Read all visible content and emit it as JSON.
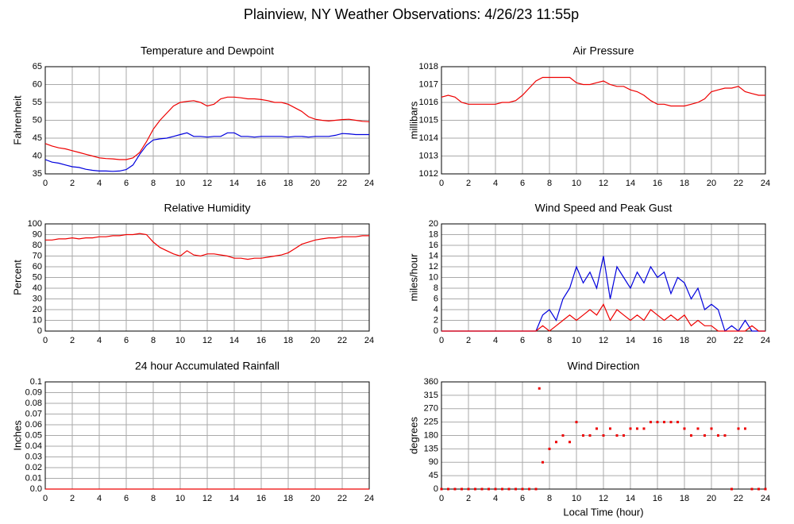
{
  "title": "Plainview, NY Weather Observations: 4/26/23 11:55p",
  "chart_data": [
    {
      "type": "line",
      "title": "Temperature and Dewpoint",
      "ylabel": "Fahrenheit",
      "x": [
        0,
        0.5,
        1,
        1.5,
        2,
        2.5,
        3,
        3.5,
        4,
        4.5,
        5,
        5.5,
        6,
        6.5,
        7,
        7.5,
        8,
        8.5,
        9,
        9.5,
        10,
        10.5,
        11,
        11.5,
        12,
        12.5,
        13,
        13.5,
        14,
        14.5,
        15,
        15.5,
        16,
        16.5,
        17,
        17.5,
        18,
        18.5,
        19,
        19.5,
        20,
        20.5,
        21,
        21.5,
        22,
        22.5,
        23,
        23.5,
        24
      ],
      "series": [
        {
          "color": "#ee0000",
          "values": [
            43.5,
            42.8,
            42.3,
            42,
            41.5,
            41,
            40.5,
            40,
            39.5,
            39.3,
            39.2,
            39,
            39,
            39.5,
            41,
            44,
            47.5,
            50,
            52,
            54,
            55,
            55.3,
            55.5,
            55,
            54,
            54.5,
            56,
            56.5,
            56.5,
            56.3,
            56,
            56,
            55.8,
            55.5,
            55,
            55,
            54.5,
            53.5,
            52.5,
            51,
            50.3,
            50,
            49.8,
            50,
            50.2,
            50.3,
            50,
            49.7,
            49.6
          ]
        },
        {
          "color": "#0000dd",
          "values": [
            39,
            38.3,
            38,
            37.5,
            37,
            36.8,
            36.3,
            36,
            35.8,
            35.8,
            35.7,
            35.8,
            36.2,
            37.5,
            40.5,
            43,
            44.5,
            44.8,
            45,
            45.5,
            46,
            46.5,
            45.5,
            45.5,
            45.3,
            45.5,
            45.5,
            46.5,
            46.5,
            45.5,
            45.5,
            45.3,
            45.5,
            45.5,
            45.5,
            45.5,
            45.3,
            45.5,
            45.5,
            45.3,
            45.5,
            45.5,
            45.5,
            45.8,
            46.3,
            46.2,
            46,
            46,
            46
          ]
        }
      ],
      "xlim": [
        0,
        24
      ],
      "xticks": [
        0,
        2,
        4,
        6,
        8,
        10,
        12,
        14,
        16,
        18,
        20,
        22,
        24
      ],
      "ylim": [
        35,
        65
      ],
      "yticks": [
        35,
        40,
        45,
        50,
        55,
        60,
        65
      ],
      "grid": true
    },
    {
      "type": "line",
      "title": "Air Pressure",
      "ylabel": "millibars",
      "x": [
        0,
        0.5,
        1,
        1.5,
        2,
        2.5,
        3,
        3.5,
        4,
        4.5,
        5,
        5.5,
        6,
        6.5,
        7,
        7.5,
        8,
        8.5,
        9,
        9.5,
        10,
        10.5,
        11,
        11.5,
        12,
        12.5,
        13,
        13.5,
        14,
        14.5,
        15,
        15.5,
        16,
        16.5,
        17,
        17.5,
        18,
        18.5,
        19,
        19.5,
        20,
        20.5,
        21,
        21.5,
        22,
        22.5,
        23,
        23.5,
        24
      ],
      "series": [
        {
          "color": "#ee0000",
          "values": [
            1016.3,
            1016.4,
            1016.3,
            1016,
            1015.9,
            1015.9,
            1015.9,
            1015.9,
            1015.9,
            1016,
            1016,
            1016.1,
            1016.4,
            1016.8,
            1017.2,
            1017.4,
            1017.4,
            1017.4,
            1017.4,
            1017.4,
            1017.1,
            1017,
            1017,
            1017.1,
            1017.2,
            1017,
            1016.9,
            1016.9,
            1016.7,
            1016.6,
            1016.4,
            1016.1,
            1015.9,
            1015.9,
            1015.8,
            1015.8,
            1015.8,
            1015.9,
            1016,
            1016.2,
            1016.6,
            1016.7,
            1016.8,
            1016.8,
            1016.9,
            1016.6,
            1016.5,
            1016.4,
            1016.4
          ]
        }
      ],
      "xlim": [
        0,
        24
      ],
      "xticks": [
        0,
        2,
        4,
        6,
        8,
        10,
        12,
        14,
        16,
        18,
        20,
        22,
        24
      ],
      "ylim": [
        1012,
        1018
      ],
      "yticks": [
        1012,
        1013,
        1014,
        1015,
        1016,
        1017,
        1018
      ],
      "grid": true
    },
    {
      "type": "line",
      "title": "Relative Humidity",
      "ylabel": "Percent",
      "x": [
        0,
        0.5,
        1,
        1.5,
        2,
        2.5,
        3,
        3.5,
        4,
        4.5,
        5,
        5.5,
        6,
        6.5,
        7,
        7.5,
        8,
        8.5,
        9,
        9.5,
        10,
        10.5,
        11,
        11.5,
        12,
        12.5,
        13,
        13.5,
        14,
        14.5,
        15,
        15.5,
        16,
        16.5,
        17,
        17.5,
        18,
        18.5,
        19,
        19.5,
        20,
        20.5,
        21,
        21.5,
        22,
        22.5,
        23,
        23.5,
        24
      ],
      "series": [
        {
          "color": "#ee0000",
          "values": [
            85,
            85,
            86,
            86,
            87,
            86,
            87,
            87,
            88,
            88,
            89,
            89,
            90,
            90,
            91,
            90,
            83,
            78,
            75,
            72,
            70,
            75,
            71,
            70,
            72,
            72,
            71,
            70,
            68,
            68,
            67,
            68,
            68,
            69,
            70,
            71,
            73,
            77,
            81,
            83,
            85,
            86,
            87,
            87,
            88,
            88,
            88,
            89,
            89
          ]
        }
      ],
      "xlim": [
        0,
        24
      ],
      "xticks": [
        0,
        2,
        4,
        6,
        8,
        10,
        12,
        14,
        16,
        18,
        20,
        22,
        24
      ],
      "ylim": [
        0,
        100
      ],
      "yticks": [
        0,
        10,
        20,
        30,
        40,
        50,
        60,
        70,
        80,
        90,
        100
      ],
      "grid": true
    },
    {
      "type": "line",
      "title": "Wind Speed and Peak Gust",
      "ylabel": "miles/hour",
      "x": [
        0,
        0.5,
        1,
        1.5,
        2,
        2.5,
        3,
        3.5,
        4,
        4.5,
        5,
        5.5,
        6,
        6.5,
        7,
        7.5,
        8,
        8.5,
        9,
        9.5,
        10,
        10.5,
        11,
        11.5,
        12,
        12.5,
        13,
        13.5,
        14,
        14.5,
        15,
        15.5,
        16,
        16.5,
        17,
        17.5,
        18,
        18.5,
        19,
        19.5,
        20,
        20.5,
        21,
        21.5,
        22,
        22.5,
        23,
        23.5,
        24
      ],
      "series": [
        {
          "color": "#0000dd",
          "values": [
            0,
            0,
            0,
            0,
            0,
            0,
            0,
            0,
            0,
            0,
            0,
            0,
            0,
            0,
            0,
            3,
            4,
            2,
            6,
            8,
            12,
            9,
            11,
            8,
            14,
            6,
            12,
            10,
            8,
            11,
            9,
            12,
            10,
            11,
            7,
            10,
            9,
            6,
            8,
            4,
            5,
            4,
            0,
            1,
            0,
            2,
            0,
            0,
            0
          ]
        },
        {
          "color": "#ee0000",
          "values": [
            0,
            0,
            0,
            0,
            0,
            0,
            0,
            0,
            0,
            0,
            0,
            0,
            0,
            0,
            0,
            1,
            0,
            1,
            2,
            3,
            2,
            3,
            4,
            3,
            5,
            2,
            4,
            3,
            2,
            3,
            2,
            4,
            3,
            2,
            3,
            2,
            3,
            1,
            2,
            1,
            1,
            0,
            0,
            0,
            0,
            0,
            1,
            0,
            0
          ]
        }
      ],
      "xlim": [
        0,
        24
      ],
      "xticks": [
        0,
        2,
        4,
        6,
        8,
        10,
        12,
        14,
        16,
        18,
        20,
        22,
        24
      ],
      "ylim": [
        0,
        20
      ],
      "yticks": [
        0,
        2,
        4,
        6,
        8,
        10,
        12,
        14,
        16,
        18,
        20
      ],
      "grid": true
    },
    {
      "type": "line",
      "title": "24 hour Accumulated Rainfall",
      "ylabel": "Inches",
      "x": [
        0,
        24
      ],
      "series": [
        {
          "color": "#ee0000",
          "values": [
            0,
            0
          ]
        }
      ],
      "xlim": [
        0,
        24
      ],
      "xticks": [
        0,
        2,
        4,
        6,
        8,
        10,
        12,
        14,
        16,
        18,
        20,
        22,
        24
      ],
      "ylim": [
        0,
        0.1
      ],
      "yticks": [
        {
          "value": 0,
          "label": "0.0"
        },
        0.01,
        0.02,
        0.03,
        0.04,
        0.05,
        0.06,
        0.07,
        0.08,
        0.09,
        0.1
      ],
      "grid": true
    },
    {
      "type": "scatter",
      "title": "Wind Direction",
      "ylabel": "degrees",
      "xlabel": "Local Time (hour)",
      "x": [
        0,
        0.5,
        1,
        1.5,
        2,
        2.5,
        3,
        3.5,
        4,
        4.5,
        5,
        5.5,
        6,
        6.5,
        7,
        7.25,
        7.5,
        8,
        8.5,
        9,
        9.5,
        10,
        10.5,
        11,
        11.5,
        12,
        12.5,
        13,
        13.5,
        14,
        14.5,
        15,
        15.5,
        16,
        16.5,
        17,
        17.5,
        18,
        18.5,
        19,
        19.5,
        20,
        20.5,
        21,
        21.5,
        22,
        22.5,
        23,
        23.5,
        24
      ],
      "series": [
        {
          "color": "#ee0000",
          "values": [
            0,
            0,
            0,
            0,
            0,
            0,
            0,
            0,
            0,
            0,
            0,
            0,
            0,
            0,
            0,
            338,
            90,
            135,
            158,
            180,
            158,
            225,
            180,
            180,
            203,
            180,
            203,
            180,
            180,
            203,
            203,
            203,
            225,
            225,
            225,
            225,
            225,
            203,
            180,
            203,
            180,
            203,
            180,
            180,
            0,
            203,
            203,
            0,
            0,
            0
          ]
        }
      ],
      "xlim": [
        0,
        24
      ],
      "xticks": [
        0,
        2,
        4,
        6,
        8,
        10,
        12,
        14,
        16,
        18,
        20,
        22,
        24
      ],
      "ylim": [
        0,
        360
      ],
      "yticks": [
        0,
        45,
        90,
        135,
        180,
        225,
        270,
        315,
        360
      ],
      "grid": true
    }
  ]
}
